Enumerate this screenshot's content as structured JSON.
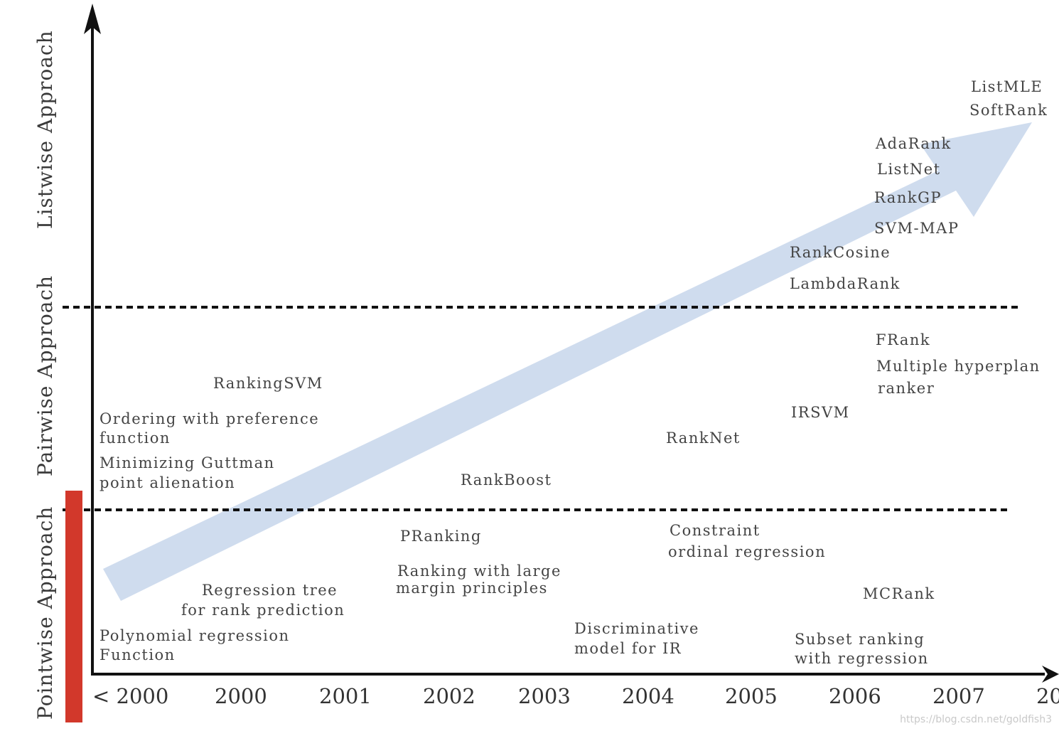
{
  "colors": {
    "arrow": "#cfdcee",
    "pointwise_bar": "#d2382b",
    "axis": "#111111"
  },
  "bands": {
    "listwise": "Listwise Approach",
    "pairwise": "Pairwise Approach",
    "pointwise": "Pointwise Approach"
  },
  "years": [
    "< 2000",
    "2000",
    "2001",
    "2002",
    "2003",
    "2004",
    "2005",
    "2006",
    "2007",
    "20"
  ],
  "methods": {
    "listmle": "ListMLE",
    "softrank": "SoftRank",
    "adarank": "AdaRank",
    "listnet": "ListNet",
    "rankgp": "RankGP",
    "svm_map": "SVM-MAP",
    "rankcosine": "RankCosine",
    "lambdarank": "LambdaRank",
    "frank": "FRank",
    "multiple_hyperplane_1": "Multiple hyperplan",
    "multiple_hyperplane_2": "ranker",
    "irsvm": "IRSVM",
    "ranknet": "RankNet",
    "rankingsvm": "RankingSVM",
    "ordering_1": "Ordering with preference",
    "ordering_2": "function",
    "guttman_1": "Minimizing Guttman",
    "guttman_2": "point alienation",
    "rankboost": "RankBoost",
    "pranking": "PRanking",
    "large_margin_1": "Ranking with large",
    "large_margin_2": "margin principles",
    "constraint_1": "Constraint",
    "constraint_2": "ordinal regression",
    "mcrank": "MCRank",
    "regtree_1": "Regression tree",
    "regtree_2": "for rank prediction",
    "polynomial_1": "Polynomial regression",
    "polynomial_2": "Function",
    "discriminative_1": "Discriminative",
    "discriminative_2": "model for IR",
    "subset_1": "Subset ranking",
    "subset_2": "with regression"
  },
  "watermark": "https://blog.csdn.net/goldfish3"
}
